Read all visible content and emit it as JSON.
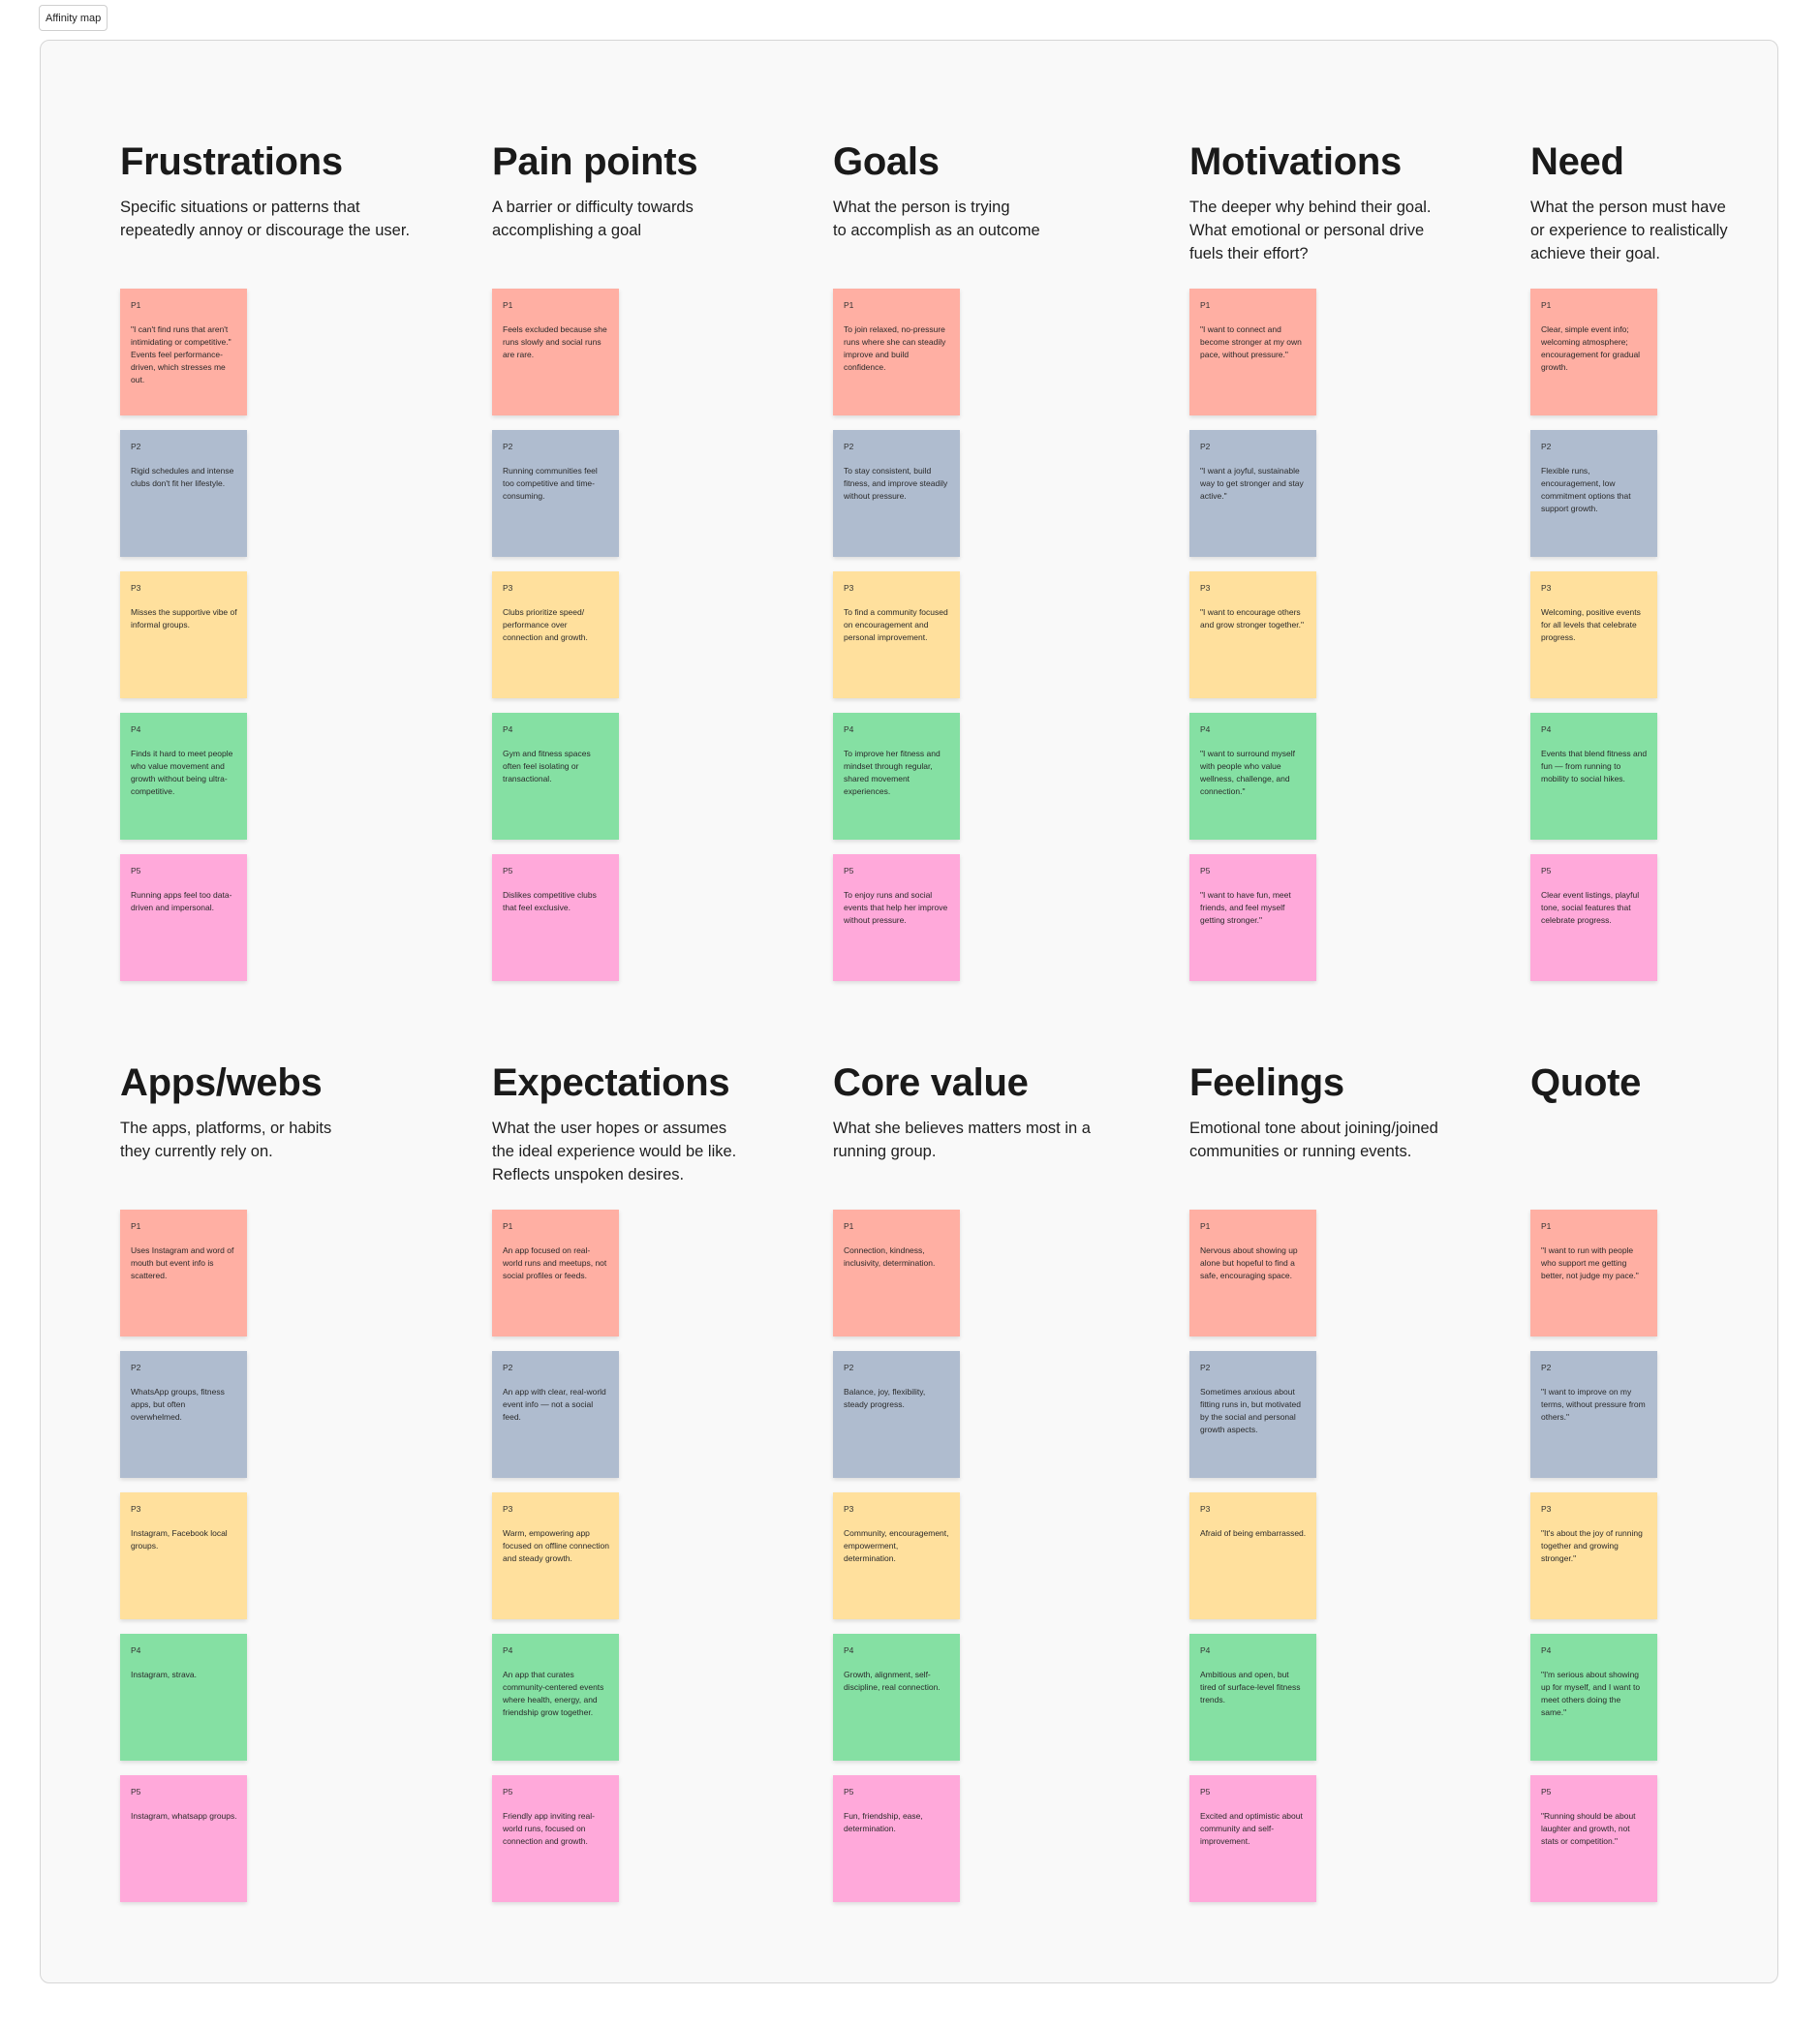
{
  "frame": {
    "label": "Affinity map"
  },
  "colors": {
    "P1": "#ffafa3",
    "P2": "#afbccf",
    "P3": "#ffe09d",
    "P4": "#85e0a3",
    "P5": "#ffa9da"
  },
  "columns": [
    {
      "title": "Frustrations",
      "description": "Specific situations or patterns that\nrepeatedly annoy or discourage the user.",
      "notes": [
        {
          "participant": "P1",
          "text": "\"I can't find runs that aren't intimidating or competitive.\" Events feel performance-driven, which stresses me out."
        },
        {
          "participant": "P2",
          "text": "Rigid schedules and intense clubs don't fit her lifestyle."
        },
        {
          "participant": "P3",
          "text": "Misses the supportive vibe of informal groups."
        },
        {
          "participant": "P4",
          "text": "Finds it hard to meet people who value movement and growth without being ultra-competitive."
        },
        {
          "participant": "P5",
          "text": "Running apps feel too data-driven and impersonal."
        }
      ]
    },
    {
      "title": "Pain points",
      "description": "A barrier or difficulty towards\naccomplishing a goal",
      "notes": [
        {
          "participant": "P1",
          "text": "Feels excluded because she runs slowly and social runs are rare."
        },
        {
          "participant": "P2",
          "text": "Running communities feel too competitive and time-consuming."
        },
        {
          "participant": "P3",
          "text": "Clubs prioritize speed/ performance over connection and growth."
        },
        {
          "participant": "P4",
          "text": "Gym and fitness spaces often feel isolating or transactional."
        },
        {
          "participant": "P5",
          "text": "Dislikes competitive clubs that feel exclusive."
        }
      ]
    },
    {
      "title": "Goals",
      "description": "What the person is trying\nto accomplish as an outcome",
      "notes": [
        {
          "participant": "P1",
          "text": "To join relaxed, no-pressure runs where she can steadily improve and build confidence."
        },
        {
          "participant": "P2",
          "text": "To stay consistent, build fitness, and improve steadily without pressure."
        },
        {
          "participant": "P3",
          "text": "To find a community focused on encouragement and personal improvement."
        },
        {
          "participant": "P4",
          "text": "To improve her fitness and mindset through regular, shared movement experiences."
        },
        {
          "participant": "P5",
          "text": "To enjoy runs and social events that help her improve without pressure."
        }
      ]
    },
    {
      "title": "Motivations",
      "description": "The deeper why behind their goal.\nWhat emotional or personal drive\nfuels their effort?",
      "notes": [
        {
          "participant": "P1",
          "text": "\"I want to connect and become stronger at my own pace, without pressure.\""
        },
        {
          "participant": "P2",
          "text": "\"I want a joyful, sustainable way to get stronger and stay active.\""
        },
        {
          "participant": "P3",
          "text": "\"I want to encourage others and grow stronger together.\""
        },
        {
          "participant": "P4",
          "text": "\"I want to surround myself with people who value wellness, challenge, and connection.\""
        },
        {
          "participant": "P5",
          "text": "\"I want to have fun, meet friends, and feel myself getting stronger.\""
        }
      ]
    },
    {
      "title": "Need",
      "description": "What the person must have\nor experience to realistically\nachieve their goal.",
      "notes": [
        {
          "participant": "P1",
          "text": "Clear, simple event info; welcoming atmosphere; encouragement for gradual growth."
        },
        {
          "participant": "P2",
          "text": "Flexible runs, encouragement, low commitment options that support growth."
        },
        {
          "participant": "P3",
          "text": "Welcoming, positive events for all levels that celebrate progress."
        },
        {
          "participant": "P4",
          "text": "Events that blend fitness and fun — from running to mobility to social hikes."
        },
        {
          "participant": "P5",
          "text": "Clear event listings, playful tone, social features that celebrate progress."
        }
      ]
    },
    {
      "title": "Apps/webs",
      "description": "The apps, platforms, or habits\nthey currently rely on.",
      "notes": [
        {
          "participant": "P1",
          "text": "Uses Instagram and word of mouth but event info is scattered."
        },
        {
          "participant": "P2",
          "text": "WhatsApp groups, fitness apps, but often overwhelmed."
        },
        {
          "participant": "P3",
          "text": "Instagram, Facebook local groups."
        },
        {
          "participant": "P4",
          "text": "Instagram, strava."
        },
        {
          "participant": "P5",
          "text": "Instagram, whatsapp groups."
        }
      ]
    },
    {
      "title": "Expectations",
      "description": "What the user hopes or assumes\nthe ideal experience would be like.\nReflects unspoken desires.",
      "notes": [
        {
          "participant": "P1",
          "text": "An app focused on real-world runs and meetups, not social profiles or feeds."
        },
        {
          "participant": "P2",
          "text": "An app with clear, real-world event info — not a social feed."
        },
        {
          "participant": "P3",
          "text": "Warm, empowering app focused on offline connection and steady growth."
        },
        {
          "participant": "P4",
          "text": "An app that curates community-centered events where health, energy, and friendship grow together."
        },
        {
          "participant": "P5",
          "text": "Friendly app inviting real-world runs, focused on connection and growth."
        }
      ]
    },
    {
      "title": "Core value",
      "description": "What she believes matters most in a\nrunning group.",
      "notes": [
        {
          "participant": "P1",
          "text": "Connection, kindness, inclusivity, determination."
        },
        {
          "participant": "P2",
          "text": "Balance, joy, flexibility, steady progress."
        },
        {
          "participant": "P3",
          "text": "Community, encouragement, empowerment, determination."
        },
        {
          "participant": "P4",
          "text": "Growth, alignment, self-discipline, real connection."
        },
        {
          "participant": "P5",
          "text": "Fun, friendship, ease, determination."
        }
      ]
    },
    {
      "title": "Feelings",
      "description": "Emotional tone about joining/joined\ncommunities or running events.",
      "notes": [
        {
          "participant": "P1",
          "text": "Nervous about showing up alone but hopeful to find a safe, encouraging space."
        },
        {
          "participant": "P2",
          "text": "Sometimes anxious about fitting runs in, but motivated by the social and personal growth aspects."
        },
        {
          "participant": "P3",
          "text": "Afraid of being embarrassed."
        },
        {
          "participant": "P4",
          "text": "Ambitious and open, but tired of surface-level fitness trends."
        },
        {
          "participant": "P5",
          "text": "Excited and optimistic about community and self-improvement."
        }
      ]
    },
    {
      "title": "Quote",
      "description": "",
      "notes": [
        {
          "participant": "P1",
          "text": "\"I want to run with people who support me getting better, not judge my pace.\""
        },
        {
          "participant": "P2",
          "text": "\"I want to improve on my terms, without pressure from others.\""
        },
        {
          "participant": "P3",
          "text": "\"It's about the joy of running together and growing stronger.\""
        },
        {
          "participant": "P4",
          "text": "\"I'm serious about showing up for myself, and I want to meet others doing the same.\""
        },
        {
          "participant": "P5",
          "text": "\"Running should be about laughter and growth, not stats or competition.\""
        }
      ]
    }
  ]
}
